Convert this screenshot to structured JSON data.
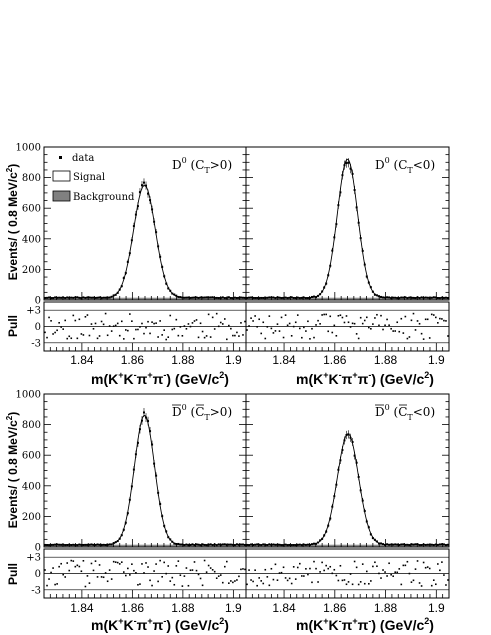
{
  "chart_data": {
    "type": "scatter",
    "x_range": [
      1.825,
      1.905
    ],
    "x_ticks": [
      "1.84",
      "1.86",
      "1.88",
      "1.9"
    ],
    "y_range": [
      0,
      1000
    ],
    "y_ticks": [
      "0",
      "200",
      "400",
      "600",
      "800",
      "1000"
    ],
    "pull_range": [
      -4.5,
      4.5
    ],
    "pull_ticks": [
      "+3",
      "0",
      "-3"
    ],
    "ylabel_main": "Events/ ( 0.8 MeV/c^2)",
    "ylabel_pull": "Pull",
    "xlabel_top_left": "m(K+K-π+π-) (GeV/c2)",
    "xlabel_top_right": "m(K+K-π+π-) (GeV/c2)",
    "xlabel_bottom_left": "m(K+K-π+π-) (GeV/c2)",
    "xlabel_bottom_right": "m(K+K-π+π-) (GeV/c2)",
    "legend": {
      "data": "data",
      "signal": "Signal",
      "background": "Background"
    },
    "background_level": 15,
    "panels": [
      {
        "id": "top-left",
        "label_main": "D",
        "label_sup": "0",
        "label_cond": "(C",
        "label_sub": "T",
        "label_rel": ">0)",
        "bar": false,
        "peak": 750,
        "mean": 1.8648,
        "sigma": 0.0043,
        "seed": 11
      },
      {
        "id": "top-right",
        "label_main": "D",
        "label_sup": "0",
        "label_cond": "(C",
        "label_sub": "T",
        "label_rel": "<0)",
        "bar": false,
        "peak": 920,
        "mean": 1.865,
        "sigma": 0.004,
        "seed": 23
      },
      {
        "id": "bottom-left",
        "label_main": "D",
        "label_sup": "0",
        "label_cond": "(C",
        "label_sub": "T",
        "label_rel": ">0)",
        "bar": true,
        "peak": 860,
        "mean": 1.8648,
        "sigma": 0.004,
        "seed": 37
      },
      {
        "id": "bottom-right",
        "label_main": "D",
        "label_sup": "0",
        "label_cond": "(C",
        "label_sub": "T",
        "label_rel": "<0)",
        "bar": true,
        "peak": 740,
        "mean": 1.8652,
        "sigma": 0.0042,
        "seed": 53
      }
    ]
  }
}
